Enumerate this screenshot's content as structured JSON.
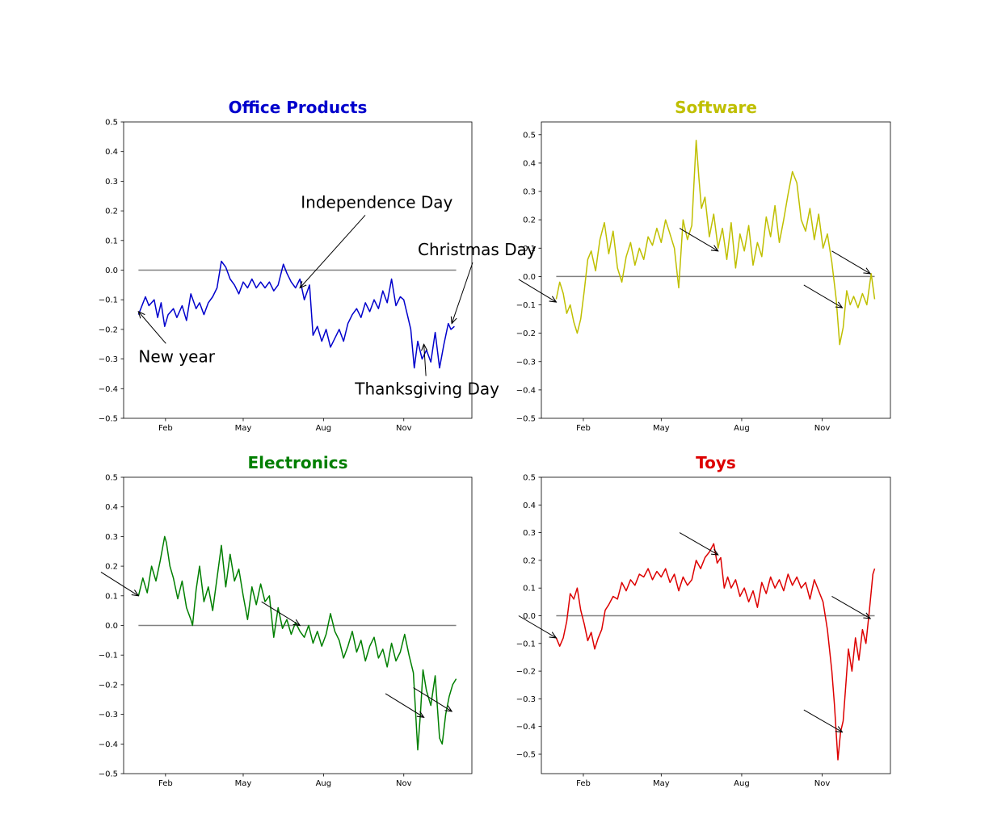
{
  "chart_data": [
    {
      "type": "line",
      "title": "Office Products",
      "title_color": "#0000cc",
      "line_color": "#0000cc",
      "baseline_color": "#808080",
      "xlabel": "",
      "ylabel": "",
      "x_ticks": [
        "Feb",
        "May",
        "Aug",
        "Nov"
      ],
      "x_tick_days": [
        31,
        120,
        212,
        304
      ],
      "xlim": [
        -17,
        382
      ],
      "y_ticks": [
        -0.5,
        -0.4,
        -0.3,
        -0.2,
        -0.1,
        0.0,
        0.1,
        0.2,
        0.3,
        0.4,
        0.5
      ],
      "ylim": [
        -0.5,
        0.5
      ],
      "grid": false,
      "baseline": 0,
      "baseline_x": [
        0,
        364
      ],
      "series": [
        {
          "x": [
            0,
            8,
            12,
            18,
            22,
            26,
            30,
            34,
            40,
            44,
            50,
            55,
            60,
            66,
            70,
            75,
            80,
            85,
            90,
            95,
            100,
            105,
            110,
            115,
            120,
            125,
            130,
            135,
            140,
            145,
            150,
            155,
            160,
            166,
            170,
            175,
            180,
            185,
            190,
            196,
            200,
            205,
            210,
            215,
            220,
            225,
            230,
            235,
            240,
            245,
            250,
            255,
            260,
            265,
            270,
            275,
            280,
            285,
            290,
            295,
            300,
            304,
            308,
            312,
            316,
            320,
            325,
            330,
            335,
            340,
            345,
            350,
            355,
            358,
            362
          ],
          "y": [
            -0.15,
            -0.09,
            -0.12,
            -0.1,
            -0.16,
            -0.11,
            -0.19,
            -0.15,
            -0.13,
            -0.16,
            -0.12,
            -0.17,
            -0.08,
            -0.13,
            -0.11,
            -0.15,
            -0.11,
            -0.09,
            -0.06,
            0.03,
            0.01,
            -0.03,
            -0.05,
            -0.08,
            -0.04,
            -0.06,
            -0.03,
            -0.06,
            -0.04,
            -0.06,
            -0.04,
            -0.07,
            -0.05,
            0.02,
            -0.01,
            -0.04,
            -0.06,
            -0.03,
            -0.1,
            -0.05,
            -0.22,
            -0.19,
            -0.24,
            -0.2,
            -0.26,
            -0.23,
            -0.2,
            -0.24,
            -0.18,
            -0.15,
            -0.13,
            -0.16,
            -0.11,
            -0.14,
            -0.1,
            -0.13,
            -0.07,
            -0.11,
            -0.03,
            -0.12,
            -0.09,
            -0.1,
            -0.15,
            -0.2,
            -0.33,
            -0.24,
            -0.3,
            -0.27,
            -0.31,
            -0.21,
            -0.33,
            -0.25,
            -0.18,
            -0.2,
            -0.19
          ]
        }
      ],
      "annotations": [
        {
          "label": "New year",
          "x": 0,
          "y": -0.14,
          "text_x": 0,
          "text_y": -0.31,
          "align": "start"
        },
        {
          "label": "Independence Day",
          "x": 185,
          "y": -0.06,
          "text_x": 186,
          "text_y": 0.21,
          "align": "start"
        },
        {
          "label": "Thanksgiving Day",
          "x": 327,
          "y": -0.25,
          "text_x": 248,
          "text_y": -0.42,
          "align": "start"
        },
        {
          "label": "Christmas Day",
          "x": 359,
          "y": -0.18,
          "text_x": 320,
          "text_y": 0.05,
          "align": "start"
        }
      ]
    },
    {
      "type": "line",
      "title": "Software",
      "title_color": "#bfbf00",
      "line_color": "#bfbf00",
      "baseline_color": "#808080",
      "xlabel": "",
      "ylabel": "",
      "x_ticks": [
        "Feb",
        "May",
        "Aug",
        "Nov"
      ],
      "x_tick_days": [
        31,
        120,
        212,
        304
      ],
      "xlim": [
        -17,
        382
      ],
      "y_ticks": [
        -0.5,
        -0.4,
        -0.3,
        -0.2,
        -0.1,
        0.0,
        0.1,
        0.2,
        0.3,
        0.4,
        0.5
      ],
      "ylim": [
        -0.5,
        0.545
      ],
      "grid": false,
      "baseline": 0,
      "baseline_x": [
        0,
        364
      ],
      "series": [
        {
          "x": [
            0,
            4,
            8,
            12,
            16,
            20,
            24,
            28,
            32,
            36,
            40,
            45,
            50,
            55,
            60,
            65,
            70,
            75,
            80,
            85,
            90,
            95,
            100,
            105,
            110,
            115,
            120,
            125,
            130,
            135,
            140,
            145,
            150,
            155,
            160,
            163,
            166,
            170,
            175,
            180,
            185,
            190,
            195,
            200,
            205,
            210,
            215,
            220,
            225,
            230,
            235,
            240,
            245,
            250,
            255,
            260,
            265,
            270,
            275,
            280,
            285,
            290,
            295,
            300,
            305,
            310,
            315,
            320,
            324,
            328,
            332,
            336,
            340,
            345,
            350,
            355,
            360,
            364
          ],
          "y": [
            -0.08,
            -0.02,
            -0.06,
            -0.13,
            -0.1,
            -0.16,
            -0.2,
            -0.15,
            -0.05,
            0.06,
            0.09,
            0.02,
            0.13,
            0.19,
            0.08,
            0.16,
            0.03,
            -0.02,
            0.07,
            0.12,
            0.04,
            0.1,
            0.06,
            0.14,
            0.11,
            0.17,
            0.12,
            0.2,
            0.15,
            0.1,
            -0.04,
            0.2,
            0.13,
            0.18,
            0.48,
            0.35,
            0.24,
            0.28,
            0.14,
            0.22,
            0.1,
            0.17,
            0.06,
            0.19,
            0.03,
            0.15,
            0.09,
            0.18,
            0.04,
            0.12,
            0.07,
            0.21,
            0.14,
            0.25,
            0.12,
            0.2,
            0.29,
            0.37,
            0.33,
            0.2,
            0.16,
            0.24,
            0.13,
            0.22,
            0.1,
            0.15,
            0.05,
            -0.08,
            -0.24,
            -0.18,
            -0.05,
            -0.1,
            -0.07,
            -0.11,
            -0.06,
            -0.1,
            0.01,
            -0.08
          ]
        }
      ],
      "annotations": [
        {
          "label": "",
          "x": 0,
          "y": -0.09,
          "text_x": -43,
          "text_y": -0.01,
          "align": "start"
        },
        {
          "label": "",
          "x": 185,
          "y": 0.09,
          "text_x": 141,
          "text_y": 0.17,
          "align": "start"
        },
        {
          "label": "",
          "x": 327,
          "y": -0.11,
          "text_x": 283,
          "text_y": -0.03,
          "align": "start"
        },
        {
          "label": "",
          "x": 359,
          "y": 0.01,
          "text_x": 315,
          "text_y": 0.09,
          "align": "start"
        }
      ]
    },
    {
      "type": "line",
      "title": "Electronics",
      "title_color": "#007f00",
      "line_color": "#007f00",
      "baseline_color": "#808080",
      "xlabel": "",
      "ylabel": "",
      "x_ticks": [
        "Feb",
        "May",
        "Aug",
        "Nov"
      ],
      "x_tick_days": [
        31,
        120,
        212,
        304
      ],
      "xlim": [
        -17,
        382
      ],
      "y_ticks": [
        -0.5,
        -0.4,
        -0.3,
        -0.2,
        -0.1,
        0.0,
        0.1,
        0.2,
        0.3,
        0.4,
        0.5
      ],
      "ylim": [
        -0.5,
        0.5
      ],
      "grid": false,
      "baseline": 0,
      "baseline_x": [
        0,
        364
      ],
      "series": [
        {
          "x": [
            0,
            5,
            10,
            15,
            20,
            25,
            30,
            32,
            36,
            40,
            45,
            50,
            55,
            60,
            62,
            66,
            70,
            75,
            80,
            85,
            90,
            95,
            100,
            105,
            110,
            115,
            120,
            125,
            130,
            135,
            140,
            145,
            150,
            155,
            160,
            165,
            170,
            175,
            180,
            185,
            190,
            195,
            200,
            205,
            210,
            215,
            220,
            225,
            230,
            235,
            240,
            245,
            250,
            255,
            260,
            265,
            270,
            275,
            280,
            285,
            290,
            295,
            300,
            305,
            310,
            315,
            320,
            323,
            326,
            330,
            335,
            340,
            345,
            348,
            352,
            356,
            360,
            364
          ],
          "y": [
            0.1,
            0.16,
            0.11,
            0.2,
            0.15,
            0.22,
            0.3,
            0.28,
            0.2,
            0.16,
            0.09,
            0.15,
            0.06,
            0.02,
            0.0,
            0.12,
            0.2,
            0.08,
            0.13,
            0.05,
            0.16,
            0.27,
            0.13,
            0.24,
            0.15,
            0.19,
            0.1,
            0.02,
            0.13,
            0.07,
            0.14,
            0.08,
            0.1,
            -0.04,
            0.06,
            -0.01,
            0.02,
            -0.03,
            0.01,
            -0.02,
            -0.04,
            0.0,
            -0.06,
            -0.02,
            -0.07,
            -0.03,
            0.04,
            -0.02,
            -0.05,
            -0.11,
            -0.07,
            -0.02,
            -0.09,
            -0.05,
            -0.12,
            -0.07,
            -0.04,
            -0.11,
            -0.08,
            -0.14,
            -0.06,
            -0.12,
            -0.09,
            -0.03,
            -0.1,
            -0.16,
            -0.42,
            -0.3,
            -0.15,
            -0.22,
            -0.27,
            -0.17,
            -0.38,
            -0.4,
            -0.3,
            -0.24,
            -0.2,
            -0.18
          ]
        }
      ],
      "annotations": [
        {
          "label": "",
          "x": 0,
          "y": 0.1,
          "text_x": -43,
          "text_y": 0.18,
          "align": "start"
        },
        {
          "label": "",
          "x": 185,
          "y": 0.0,
          "text_x": 141,
          "text_y": 0.08,
          "align": "start"
        },
        {
          "label": "",
          "x": 327,
          "y": -0.31,
          "text_x": 283,
          "text_y": -0.23,
          "align": "start"
        },
        {
          "label": "",
          "x": 359,
          "y": -0.29,
          "text_x": 315,
          "text_y": -0.21,
          "align": "start"
        }
      ]
    },
    {
      "type": "line",
      "title": "Toys",
      "title_color": "#dd0000",
      "line_color": "#dd0000",
      "baseline_color": "#808080",
      "xlabel": "",
      "ylabel": "",
      "x_ticks": [
        "Feb",
        "May",
        "Aug",
        "Nov"
      ],
      "x_tick_days": [
        31,
        120,
        212,
        304
      ],
      "xlim": [
        -17,
        382
      ],
      "y_ticks": [
        -0.5,
        -0.4,
        -0.3,
        -0.2,
        -0.1,
        0.0,
        0.1,
        0.2,
        0.3,
        0.4,
        0.5
      ],
      "ylim": [
        -0.57,
        0.5
      ],
      "grid": false,
      "baseline": 0,
      "baseline_x": [
        0,
        364
      ],
      "series": [
        {
          "x": [
            0,
            4,
            8,
            12,
            16,
            20,
            24,
            28,
            32,
            36,
            40,
            44,
            48,
            52,
            56,
            60,
            65,
            70,
            75,
            80,
            85,
            90,
            95,
            100,
            105,
            110,
            115,
            120,
            125,
            130,
            135,
            140,
            145,
            150,
            155,
            160,
            165,
            170,
            175,
            180,
            184,
            188,
            192,
            196,
            200,
            205,
            210,
            215,
            220,
            225,
            230,
            235,
            240,
            245,
            250,
            255,
            260,
            265,
            270,
            275,
            280,
            285,
            290,
            295,
            300,
            305,
            310,
            315,
            318,
            322,
            325,
            328,
            331,
            334,
            338,
            342,
            346,
            350,
            354,
            358,
            362,
            364
          ],
          "y": [
            -0.08,
            -0.11,
            -0.08,
            -0.02,
            0.08,
            0.06,
            0.1,
            0.02,
            -0.03,
            -0.09,
            -0.06,
            -0.12,
            -0.08,
            -0.05,
            0.02,
            0.04,
            0.07,
            0.06,
            0.12,
            0.09,
            0.13,
            0.11,
            0.15,
            0.14,
            0.17,
            0.13,
            0.16,
            0.14,
            0.17,
            0.12,
            0.15,
            0.09,
            0.14,
            0.11,
            0.13,
            0.2,
            0.17,
            0.21,
            0.23,
            0.26,
            0.19,
            0.21,
            0.1,
            0.14,
            0.1,
            0.13,
            0.07,
            0.1,
            0.05,
            0.09,
            0.03,
            0.12,
            0.08,
            0.14,
            0.1,
            0.13,
            0.09,
            0.15,
            0.11,
            0.14,
            0.1,
            0.12,
            0.06,
            0.13,
            0.09,
            0.05,
            -0.05,
            -0.2,
            -0.32,
            -0.52,
            -0.42,
            -0.38,
            -0.25,
            -0.12,
            -0.2,
            -0.08,
            -0.16,
            -0.05,
            -0.1,
            0.02,
            0.15,
            0.17
          ]
        }
      ],
      "annotations": [
        {
          "label": "",
          "x": 0,
          "y": -0.08,
          "text_x": -43,
          "text_y": 0.0,
          "align": "start"
        },
        {
          "label": "",
          "x": 185,
          "y": 0.22,
          "text_x": 141,
          "text_y": 0.3,
          "align": "start"
        },
        {
          "label": "",
          "x": 327,
          "y": -0.42,
          "text_x": 283,
          "text_y": -0.34,
          "align": "start"
        },
        {
          "label": "",
          "x": 359,
          "y": -0.01,
          "text_x": 315,
          "text_y": 0.07,
          "align": "start"
        }
      ]
    }
  ]
}
